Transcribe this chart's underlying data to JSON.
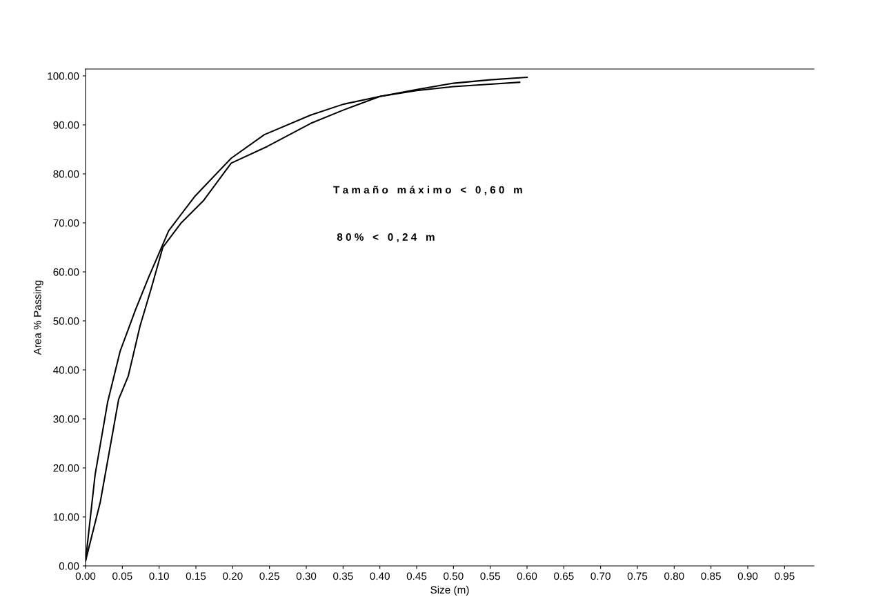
{
  "chart_data": {
    "type": "line",
    "xlabel": "Size (m)",
    "ylabel": "Area % Passing",
    "annotations": [
      "T a m a ñ o   m á x i m o   <   0 , 6 0   m",
      "8 0 %   <   0 , 2 4   m"
    ],
    "series": [
      {
        "color": "#000000",
        "x": [
          0,
          0.013,
          0.03,
          0.047,
          0.068,
          0.086,
          0.099,
          0.113,
          0.149,
          0.198,
          0.243,
          0.306,
          0.35,
          0.4,
          0.45,
          0.5,
          0.55,
          0.59
        ],
        "values": [
          1,
          18.6,
          33.4,
          43.8,
          52.3,
          59,
          63.5,
          68.4,
          75.5,
          83.2,
          88,
          92,
          94.2,
          95.8,
          97,
          97.8,
          98.3,
          98.7
        ]
      },
      {
        "color": "#000000",
        "x": [
          0,
          0.02,
          0.045,
          0.058,
          0.074,
          0.09,
          0.105,
          0.13,
          0.16,
          0.198,
          0.247,
          0.306,
          0.35,
          0.4,
          0.45,
          0.5,
          0.55,
          0.6
        ],
        "values": [
          1,
          13,
          34,
          38.7,
          48.9,
          57,
          65,
          70,
          74.5,
          82.2,
          85.6,
          90.3,
          93,
          95.8,
          97.2,
          98.5,
          99.2,
          99.7
        ]
      }
    ],
    "xlim": [
      0,
      0.99
    ],
    "ylim": [
      0,
      101.4
    ],
    "xticks": [
      {
        "value": 0,
        "label": "0.00"
      },
      0.05,
      {
        "value": 0.1,
        "label": "0.10"
      },
      0.15,
      {
        "value": 0.2,
        "label": "0.20"
      },
      0.25,
      {
        "value": 0.3,
        "label": "0.30"
      },
      0.35,
      {
        "value": 0.4,
        "label": "0.40"
      },
      0.45,
      {
        "value": 0.5,
        "label": "0.50"
      },
      0.55,
      {
        "value": 0.6,
        "label": "0.60"
      },
      0.65,
      {
        "value": 0.7,
        "label": "0.70"
      },
      0.75,
      {
        "value": 0.8,
        "label": "0.80"
      },
      0.85,
      {
        "value": 0.9,
        "label": "0.90"
      },
      0.95
    ],
    "yticks": [
      {
        "value": 0,
        "label": "0.00"
      },
      {
        "value": 10,
        "label": "10.00"
      },
      {
        "value": 20,
        "label": "20.00"
      },
      {
        "value": 30,
        "label": "30.00"
      },
      {
        "value": 40,
        "label": "40.00"
      },
      {
        "value": 50,
        "label": "50.00"
      },
      {
        "value": 60,
        "label": "60.00"
      },
      {
        "value": 70,
        "label": "70.00"
      },
      {
        "value": 80,
        "label": "80.00"
      },
      {
        "value": 90,
        "label": "90.00"
      },
      {
        "value": 100,
        "label": "100.00"
      }
    ],
    "grid": false,
    "legend": false,
    "marker": "none",
    "line_style": "solid"
  }
}
